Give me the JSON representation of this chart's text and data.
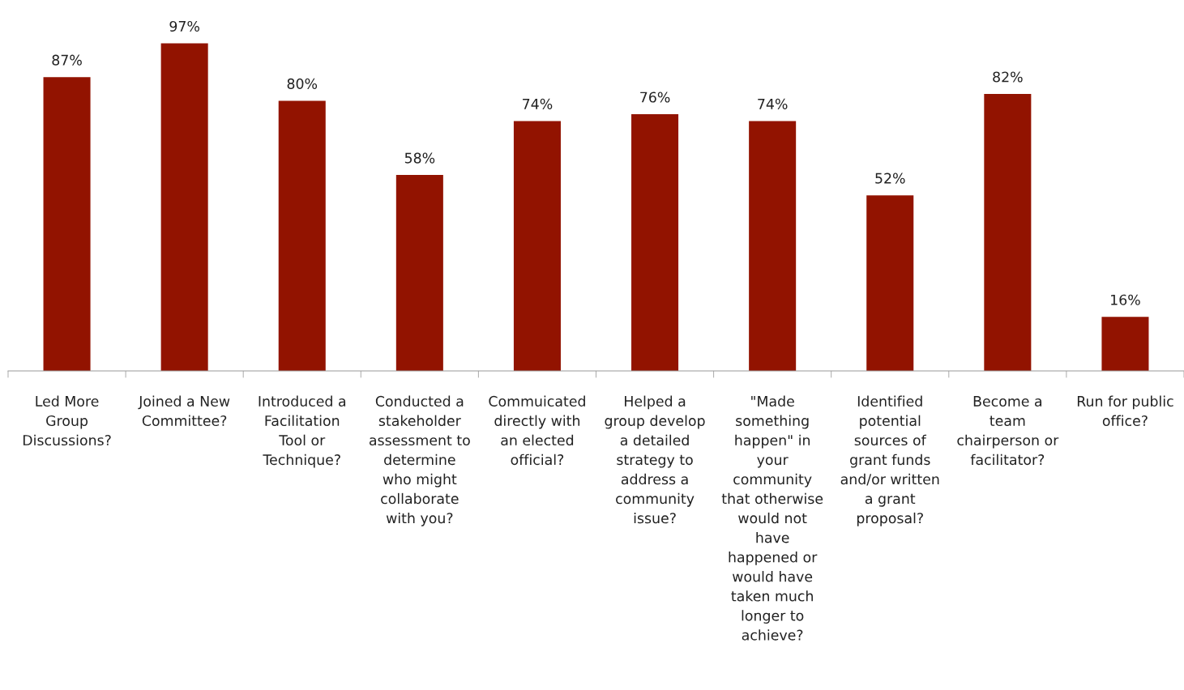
{
  "chart_data": {
    "type": "bar",
    "categories": [
      "Led More\nGroup\nDiscussions?",
      "Joined a New\nCommittee?",
      "Introduced a\nFacilitation\nTool or\nTechnique?",
      "Conducted a\nstakeholder\nassessment to\ndetermine\nwho might\ncollaborate\nwith you?",
      "Commuicated\ndirectly with\nan elected\nofficial?",
      "Helped a\ngroup develop\na detailed\nstrategy to\naddress a\ncommunity\nissue?",
      "\"Made\nsomething\nhappen\" in\nyour\ncommunity\nthat otherwise\nwould not\nhave\nhappened or\nwould have\ntaken much\nlonger to\nachieve?",
      "Identified\npotential\nsources of\ngrant funds\nand/or written\na grant\nproposal?",
      "Become a\nteam\nchairperson or\nfacilitator?",
      "Run for public\noffice?"
    ],
    "values": [
      87,
      97,
      80,
      58,
      74,
      76,
      74,
      52,
      82,
      16
    ],
    "value_labels": [
      "87%",
      "97%",
      "80%",
      "58%",
      "74%",
      "76%",
      "74%",
      "52%",
      "82%",
      "16%"
    ],
    "color": "#921300",
    "tick_labels": "x",
    "grid": false,
    "legend": false
  }
}
